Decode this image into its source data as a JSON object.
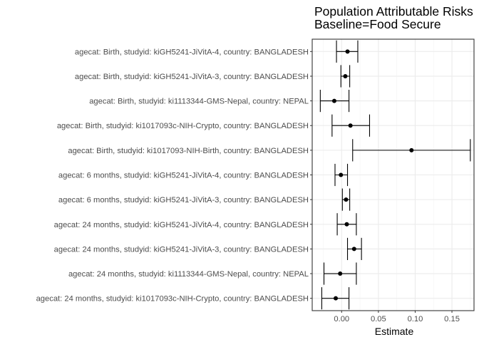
{
  "chart_data": {
    "type": "forest",
    "title": [
      "Population Attributable Risks",
      "Baseline=Food Secure"
    ],
    "xlabel": "Estimate",
    "ylabel": "",
    "xlim": [
      -0.04,
      0.18
    ],
    "xticks": [
      0.0,
      0.05,
      0.1,
      0.15
    ],
    "xtick_labels": [
      "0.00",
      "0.05",
      "0.10",
      "0.15"
    ],
    "grid": true,
    "rows": [
      {
        "label": "agecat: Birth, studyid: kiGH5241-JiVitA-4, country: BANGLADESH",
        "estimate": 0.008,
        "lower": -0.007,
        "upper": 0.022
      },
      {
        "label": "agecat: Birth, studyid: kiGH5241-JiVitA-3, country: BANGLADESH",
        "estimate": 0.005,
        "lower": -0.001,
        "upper": 0.011
      },
      {
        "label": "agecat: Birth, studyid: ki1113344-GMS-Nepal, country: NEPAL",
        "estimate": -0.01,
        "lower": -0.029,
        "upper": 0.01
      },
      {
        "label": "agecat: Birth, studyid: ki1017093c-NIH-Crypto, country: BANGLADESH",
        "estimate": 0.012,
        "lower": -0.013,
        "upper": 0.038
      },
      {
        "label": "agecat: Birth, studyid: ki1017093-NIH-Birth, country: BANGLADESH",
        "estimate": 0.095,
        "lower": 0.015,
        "upper": 0.175
      },
      {
        "label": "agecat: 6 months, studyid: kiGH5241-JiVitA-4, country: BANGLADESH",
        "estimate": -0.001,
        "lower": -0.009,
        "upper": 0.008
      },
      {
        "label": "agecat: 6 months, studyid: kiGH5241-JiVitA-3, country: BANGLADESH",
        "estimate": 0.006,
        "lower": 0.001,
        "upper": 0.011
      },
      {
        "label": "agecat: 24 months, studyid: kiGH5241-JiVitA-4, country: BANGLADESH",
        "estimate": 0.007,
        "lower": -0.006,
        "upper": 0.02
      },
      {
        "label": "agecat: 24 months, studyid: kiGH5241-JiVitA-3, country: BANGLADESH",
        "estimate": 0.017,
        "lower": 0.008,
        "upper": 0.027
      },
      {
        "label": "agecat: 24 months, studyid: ki1113344-GMS-Nepal, country: NEPAL",
        "estimate": -0.002,
        "lower": -0.024,
        "upper": 0.02
      },
      {
        "label": "agecat: 24 months, studyid: ki1017093c-NIH-Crypto, country: BANGLADESH",
        "estimate": -0.008,
        "lower": -0.027,
        "upper": 0.01
      }
    ],
    "colors": {
      "panel_border": "#333333",
      "grid_major": "#ebebeb",
      "grid_minor": "#f5f5f5",
      "mark": "#000000",
      "tick": "#333333"
    }
  }
}
